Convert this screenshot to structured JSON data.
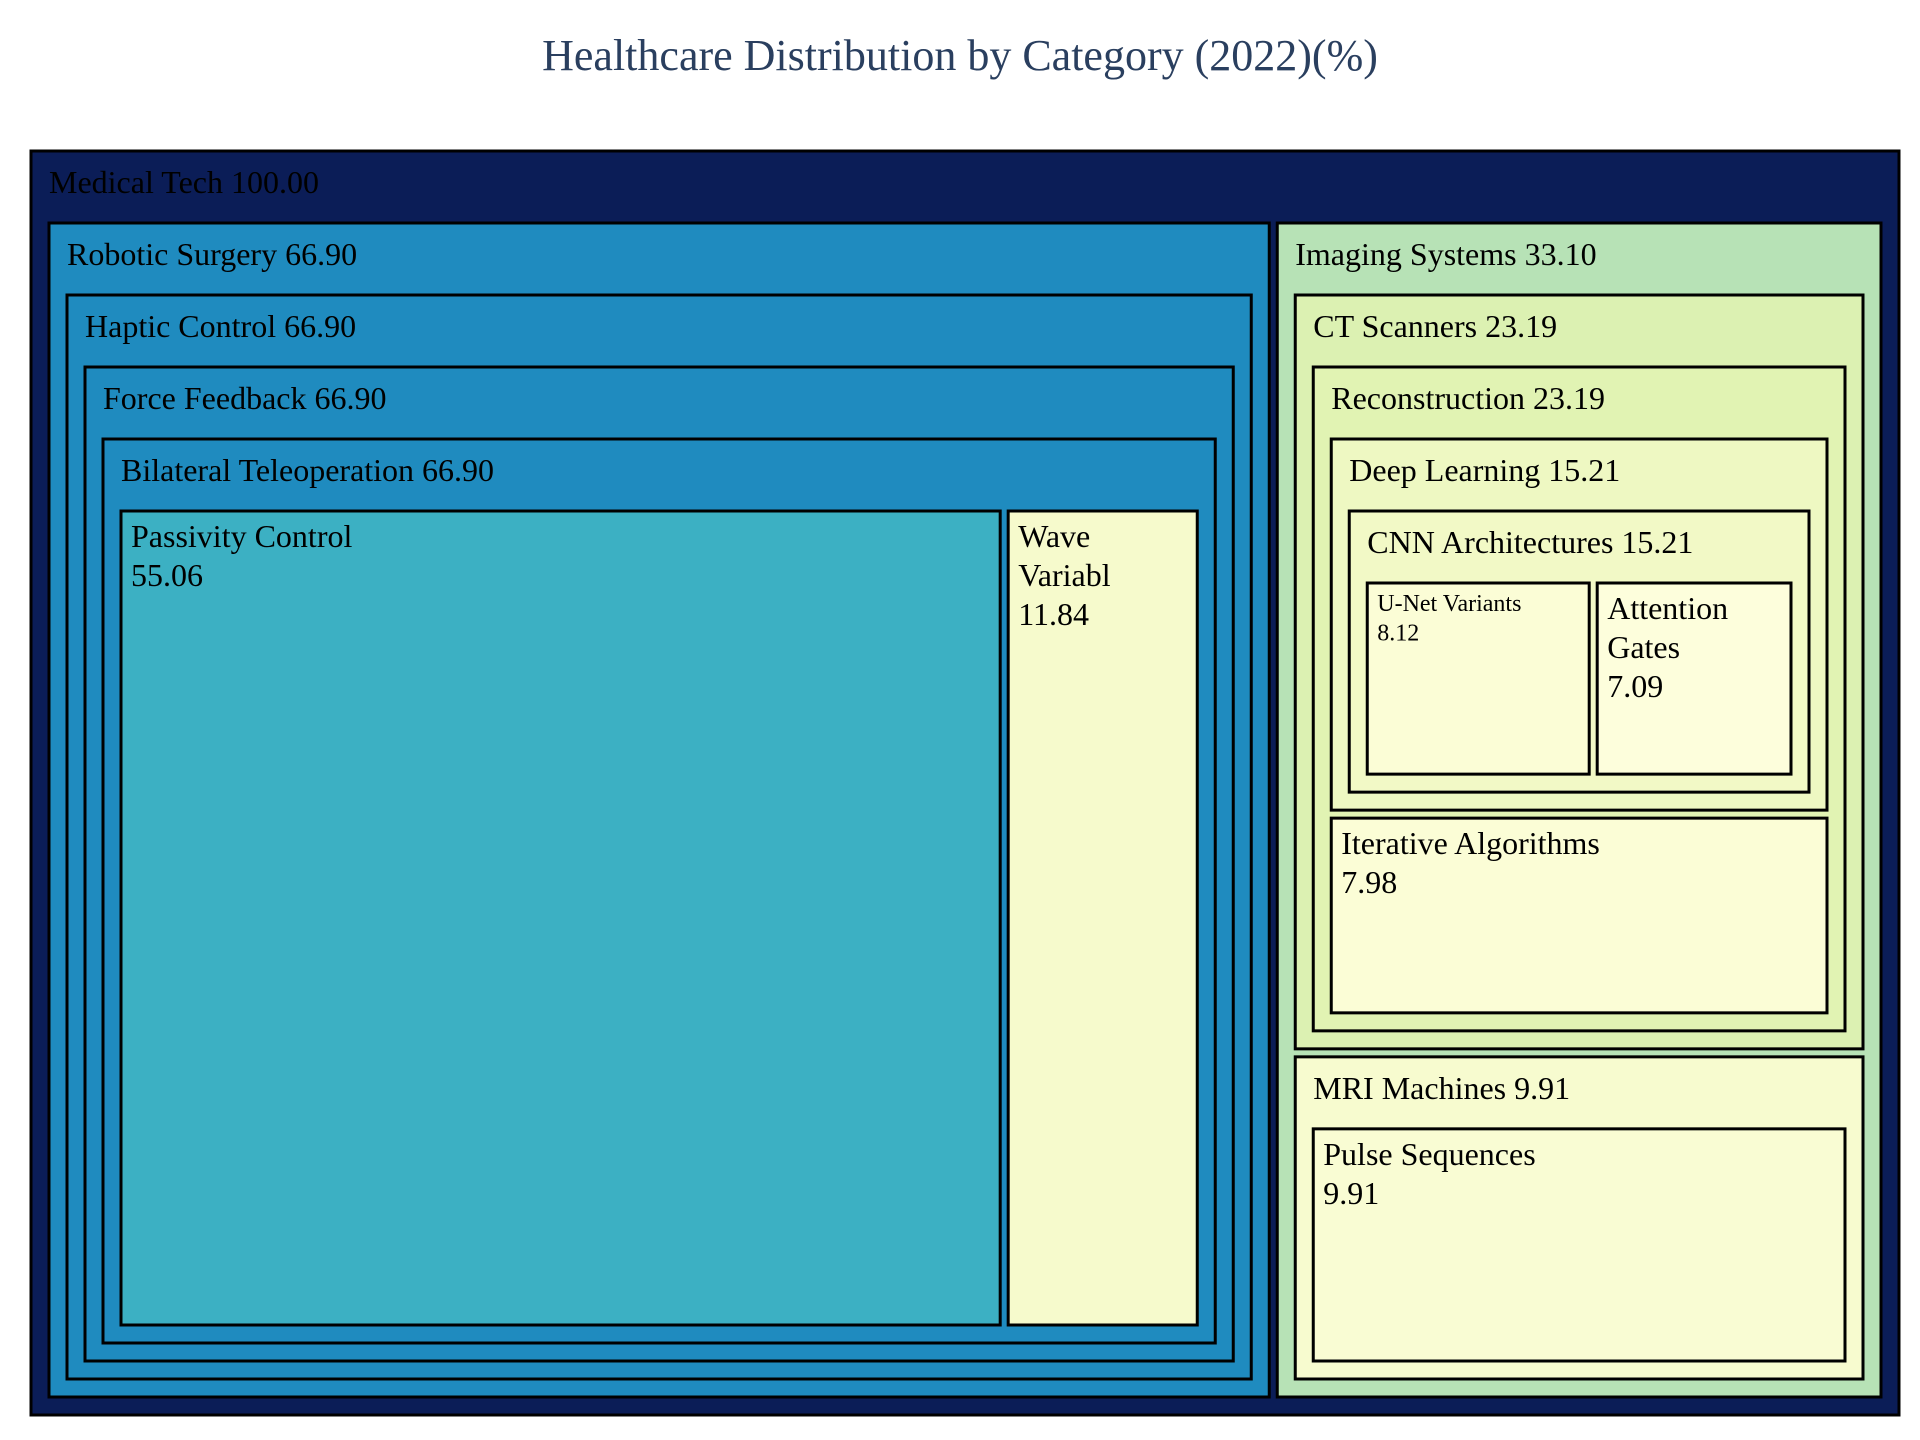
{
  "chart_data": {
    "type": "treemap",
    "title": "Healthcare Distribution by Category (2022)(%)",
    "value_format": "two decimals",
    "root": {
      "name": "Medical Tech",
      "value": 100.0,
      "color": "#0b1d57",
      "children": [
        {
          "name": "Robotic Surgery",
          "value": 66.9,
          "color": "#1f8bbf",
          "children": [
            {
              "name": "Haptic Control",
              "value": 66.9,
              "color": "#1f8bbf",
              "children": [
                {
                  "name": "Force Feedback",
                  "value": 66.9,
                  "color": "#1f8bbf",
                  "children": [
                    {
                      "name": "Bilateral Teleoperation",
                      "value": 66.9,
                      "color": "#1f8bbf",
                      "children": [
                        {
                          "name": "Passivity Control",
                          "value": 55.06,
                          "color": "#3cb0c3"
                        },
                        {
                          "name": "Wave Variabl",
                          "value": 11.84,
                          "color": "#f6facc"
                        }
                      ]
                    }
                  ]
                }
              ]
            }
          ]
        },
        {
          "name": "Imaging Systems",
          "value": 33.1,
          "color": "#b7e2b6",
          "children": [
            {
              "name": "CT Scanners",
              "value": 23.19,
              "color": "#dcf1b2",
              "children": [
                {
                  "name": "Reconstruction",
                  "value": 23.19,
                  "color": "#e1f3b3",
                  "children": [
                    {
                      "name": "Deep Learning",
                      "value": 15.21,
                      "color": "#eef8c2",
                      "children": [
                        {
                          "name": "CNN Architectures",
                          "value": 15.21,
                          "color": "#f2f9c6",
                          "children": [
                            {
                              "name": "U-Net Variants",
                              "value": 8.12,
                              "color": "#fbfdd6"
                            },
                            {
                              "name": "Attention Gates",
                              "value": 7.09,
                              "color": "#fdfedc"
                            }
                          ]
                        }
                      ]
                    },
                    {
                      "name": "Iterative Algorithms",
                      "value": 7.98,
                      "color": "#fbfdd6"
                    }
                  ]
                }
              ]
            },
            {
              "name": "MRI Machines",
              "value": 9.91,
              "color": "#f7fbcf",
              "children": [
                {
                  "name": "Pulse Sequences",
                  "value": 9.91,
                  "color": "#f9fcd3"
                }
              ]
            }
          ]
        }
      ]
    }
  }
}
